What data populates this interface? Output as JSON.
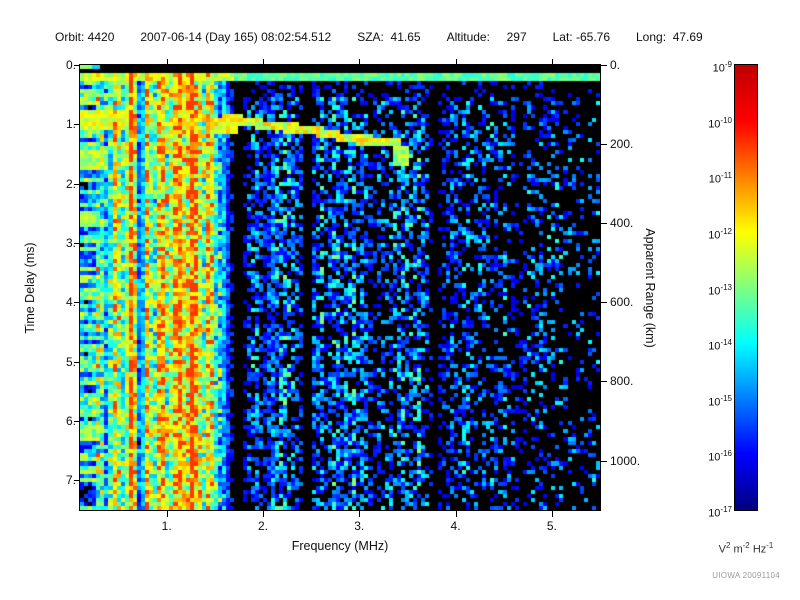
{
  "header": {
    "items": [
      "Orbit: 4420",
      "2007-06-14 (Day 165) 08:02:54.512",
      "SZA:  41.65",
      "Altitude:     297",
      "Lat: -65.76",
      "Long:  47.69"
    ]
  },
  "credit": "UIOWA 20091104",
  "chart_data": {
    "type": "heatmap",
    "subtype": "radar-sounder-ionogram-spectrogram",
    "seed": 20091104,
    "x_axis": {
      "label": "Frequency (MHz)",
      "min": 0.1,
      "max": 5.5,
      "tick_values": [
        1,
        2,
        3,
        4,
        5
      ],
      "tick_labels": [
        "1.",
        "2.",
        "3.",
        "4.",
        "5."
      ]
    },
    "y_axis": {
      "label": "Time Delay (ms)",
      "min": 0,
      "max": 7.5,
      "tick_values": [
        0,
        1,
        2,
        3,
        4,
        5,
        6,
        7
      ],
      "tick_labels": [
        "0.",
        "1.",
        "2.",
        "3.",
        "4.",
        "5.",
        "6.",
        "7."
      ]
    },
    "y2_axis": {
      "label": "Apparent Range (km)",
      "km_per_ms": 150,
      "tick_values": [
        0,
        200,
        400,
        600,
        800,
        1000
      ],
      "tick_labels": [
        "0.",
        "200.",
        "400.",
        "600.",
        "800.",
        "1000."
      ]
    },
    "colorbar": {
      "scale": "log",
      "exponents": [
        -9,
        -10,
        -11,
        -12,
        -13,
        -14,
        -15,
        -16,
        -17
      ],
      "max_color": "#ff0000",
      "min_color": "#00008f",
      "unit_parts": [
        {
          "base": "V",
          "exp": "2"
        },
        {
          "base": " m",
          "exp": "-2"
        },
        {
          "base": " Hz",
          "exp": "-1"
        }
      ]
    },
    "features": {
      "background": "#000000",
      "transmit_band": {
        "d0": 0.14,
        "d1": 0.3
      },
      "shadow_band": {
        "d0": 0.3,
        "d1": 0.55,
        "fmin": 1.7,
        "factor": 0.5
      },
      "harmonic_bands": [
        {
          "f": 0.3,
          "w": 0.03,
          "s": 0.32
        },
        {
          "f": 0.47,
          "w": 0.03,
          "s": 0.42
        },
        {
          "f": 0.63,
          "w": 0.032,
          "s": 0.62
        },
        {
          "f": 0.8,
          "w": 0.038,
          "s": 0.36
        },
        {
          "f": 0.95,
          "w": 0.042,
          "s": 0.46
        },
        {
          "f": 1.12,
          "w": 0.048,
          "s": 0.5
        },
        {
          "f": 1.28,
          "w": 0.052,
          "s": 0.6
        },
        {
          "f": 1.45,
          "w": 0.04,
          "s": 0.36
        }
      ],
      "blackout_bands": [
        {
          "f": 0.73,
          "w": 0.022,
          "s": 0.55
        },
        {
          "f": 1.75,
          "w": 0.065,
          "s": 0.95
        },
        {
          "f": 2.02,
          "w": 0.028,
          "s": 0.5
        },
        {
          "f": 2.46,
          "w": 0.042,
          "s": 0.95
        },
        {
          "f": 3.15,
          "w": 0.035,
          "s": 0.55
        },
        {
          "f": 3.79,
          "w": 0.048,
          "s": 0.92
        },
        {
          "f": 4.67,
          "w": 0.038,
          "s": 0.55
        }
      ],
      "blobs": [
        {
          "f0": 0.1,
          "f1": 0.6,
          "d0": 0.78,
          "d1": 1.06,
          "s": 0.52
        },
        {
          "f0": 0.1,
          "f1": 0.38,
          "d0": 1.45,
          "d1": 1.8,
          "s": 0.46
        },
        {
          "f0": 1.45,
          "f1": 1.76,
          "d0": 0.92,
          "d1": 1.16,
          "s": 0.55
        },
        {
          "f0": 0.1,
          "f1": 0.3,
          "d0": 2.45,
          "d1": 2.7,
          "s": 0.45
        },
        {
          "f0": 0.12,
          "f1": 0.3,
          "d0": 6.05,
          "d1": 6.35,
          "s": 0.42
        }
      ],
      "echo_trace": {
        "f0": 1.58,
        "f1": 3.44,
        "d0": 0.88,
        "slope": 0.253,
        "half_width": 0.08,
        "cusp_extend": 0.32
      },
      "left_dash_fmax": 0.33,
      "noise": {
        "low_freq_density": 0.92,
        "high_freq_density_min": 0.2
      }
    }
  }
}
